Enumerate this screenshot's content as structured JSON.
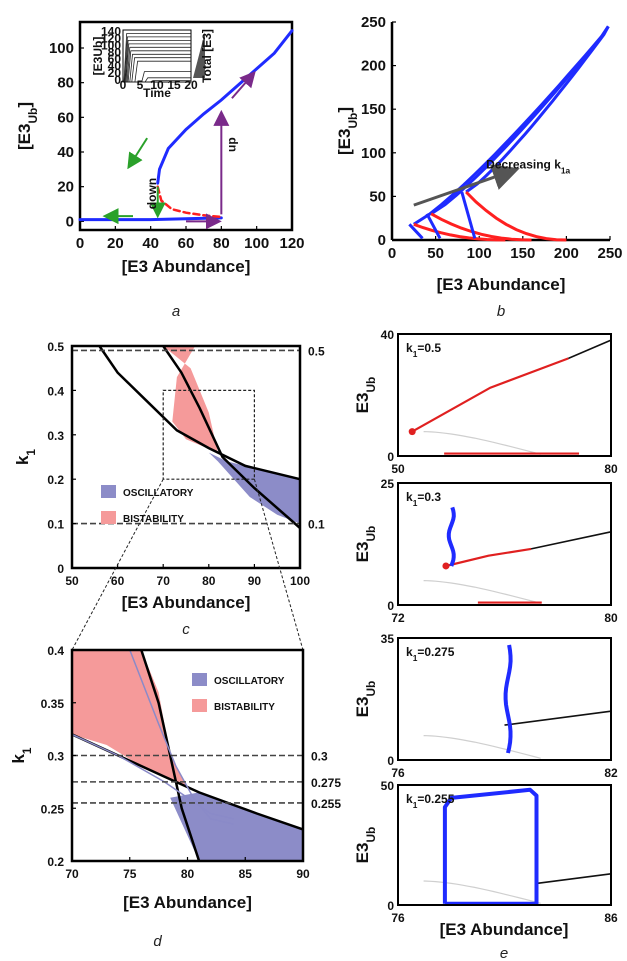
{
  "chart_data": [
    {
      "id": "a",
      "type": "line",
      "caption": "a",
      "xlabel": "[E3 Abundance]",
      "ylabel_main": "[E3",
      "ylabel_sub": "Ub",
      "ylabel_end": "]",
      "xlim": [
        0,
        120
      ],
      "ylim": [
        -5,
        115
      ],
      "xticks": [
        "0",
        "20",
        "40",
        "60",
        "80",
        "100",
        "120"
      ],
      "xtick_values": [
        0,
        20,
        40,
        60,
        80,
        100,
        120
      ],
      "yticks": [
        "0",
        "20",
        "40",
        "60",
        "80",
        "100"
      ],
      "ytick_values": [
        0,
        20,
        40,
        60,
        80,
        100
      ],
      "series": [
        {
          "style": "stable",
          "color": "#1f2bff",
          "x": [
            0,
            20,
            40,
            60,
            80
          ],
          "y": [
            1,
            1,
            1,
            1.5,
            2
          ]
        },
        {
          "style": "stable",
          "color": "#1f2bff",
          "x": [
            44,
            45,
            50,
            60,
            70,
            80,
            90,
            100,
            110,
            120
          ],
          "y": [
            22,
            30,
            42,
            53,
            62,
            70,
            79,
            88,
            97,
            110
          ]
        },
        {
          "style": "unstable",
          "color": "#ff2020",
          "x": [
            44,
            46,
            52,
            60,
            70,
            80
          ],
          "y": [
            20,
            12,
            7,
            5,
            3.5,
            2.5
          ]
        }
      ],
      "annotations": [
        {
          "text": "down",
          "color": "#2aa12a",
          "x": 43,
          "y": 7
        },
        {
          "text": "up",
          "color": "#7a2a8a",
          "x": 88,
          "y": 40
        }
      ],
      "arrows": [
        {
          "color": "#2aa12a",
          "from": [
            38,
            48
          ],
          "to": [
            28,
            32
          ]
        },
        {
          "color": "#2aa12a",
          "from": [
            44,
            20
          ],
          "to": [
            44,
            4
          ]
        },
        {
          "color": "#2aa12a",
          "from": [
            30,
            3
          ],
          "to": [
            15,
            3
          ]
        },
        {
          "color": "#7a2a8a",
          "from": [
            60,
            0
          ],
          "to": [
            78,
            0
          ]
        },
        {
          "color": "#7a2a8a",
          "from": [
            80,
            4
          ],
          "to": [
            80,
            62
          ]
        },
        {
          "color": "#7a2a8a",
          "from": [
            86,
            71
          ],
          "to": [
            98,
            85
          ]
        }
      ],
      "inset": {
        "xlabel": "Time",
        "ylabel_main": "[E3",
        "ylabel_sub": "Ub",
        "ylabel_end": "]",
        "side_label": "Total [E3]",
        "xlim": [
          0,
          20
        ],
        "ylim": [
          0,
          150
        ],
        "xticks": [
          "0",
          "5",
          "10",
          "15",
          "20"
        ],
        "xtick_values": [
          0,
          5,
          10,
          15,
          20
        ],
        "yticks": [
          "0",
          "20",
          "40",
          "60",
          "80",
          "100",
          "120",
          "140"
        ],
        "ytick_values": [
          0,
          20,
          40,
          60,
          80,
          100,
          120,
          140
        ],
        "plateaus": [
          140,
          130,
          120,
          110,
          100,
          90,
          80,
          70,
          60,
          30,
          12,
          4
        ],
        "rise_times": [
          0.3,
          0.5,
          0.7,
          0.9,
          1.2,
          1.5,
          2.0,
          2.6,
          3.5,
          5.5,
          6.5,
          8
        ]
      }
    },
    {
      "id": "b",
      "type": "line",
      "caption": "b",
      "xlabel": "[E3 Abundance]",
      "ylabel_main": "[E3",
      "ylabel_sub": "Ub",
      "ylabel_end": "]",
      "xlim": [
        0,
        250
      ],
      "ylim": [
        0,
        250
      ],
      "xticks": [
        "0",
        "50",
        "100",
        "150",
        "200",
        "250"
      ],
      "xtick_values": [
        0,
        50,
        100,
        150,
        200,
        250
      ],
      "yticks": [
        "0",
        "50",
        "100",
        "150",
        "200",
        "250"
      ],
      "ytick_values": [
        0,
        50,
        100,
        150,
        200,
        250
      ],
      "curves": [
        {
          "xmin": 25,
          "knee": 18,
          "xend": 130
        },
        {
          "xmin": 45,
          "knee": 30,
          "xend": 160
        },
        {
          "xmin": 85,
          "knee": 55,
          "xend": 200
        }
      ],
      "arrow_label_main": "Decreasing k",
      "arrow_label_sub": "1a",
      "arrow": {
        "from": [
          25,
          40
        ],
        "to": [
          140,
          80
        ]
      }
    },
    {
      "id": "c",
      "type": "area",
      "caption": "c",
      "xlabel": "[E3 Abundance]",
      "ylabel_main": "k",
      "ylabel_sub": "1",
      "xlim": [
        50,
        100
      ],
      "ylim": [
        0,
        0.5
      ],
      "xticks": [
        "50",
        "60",
        "70",
        "80",
        "90",
        "100"
      ],
      "xtick_values": [
        50,
        60,
        70,
        80,
        90,
        100
      ],
      "yticks": [
        "0",
        "0.1",
        "0.2",
        "0.3",
        "0.4",
        "0.5"
      ],
      "ytick_values": [
        0,
        0.1,
        0.2,
        0.3,
        0.4,
        0.5
      ],
      "right_labels": [
        "0.5",
        "0.1"
      ],
      "right_label_values": [
        0.49,
        0.1
      ],
      "legend": [
        {
          "label": "OSCILLATORY",
          "color": "#8c8cc8"
        },
        {
          "label": "BISTABILITY",
          "color": "#f59a9a"
        }
      ],
      "bistable": {
        "x": [
          55,
          62,
          70,
          76,
          80,
          82,
          75,
          72,
          73,
          77
        ],
        "y": [
          0.5,
          0.5,
          0.5,
          0.45,
          0.35,
          0.26,
          0.29,
          0.33,
          0.43,
          0.5
        ]
      },
      "oscillatory": {
        "x": [
          80,
          84,
          92,
          100,
          100,
          95,
          89,
          82
        ],
        "y": [
          0.26,
          0.24,
          0.22,
          0.2,
          0.1,
          0.12,
          0.16,
          0.24
        ]
      },
      "bounds": [
        {
          "x": [
            56,
            60,
            66,
            73,
            80,
            88,
            100
          ],
          "y": [
            0.5,
            0.44,
            0.38,
            0.31,
            0.27,
            0.23,
            0.2
          ]
        },
        {
          "x": [
            70,
            74,
            78,
            83,
            90,
            100
          ],
          "y": [
            0.5,
            0.44,
            0.36,
            0.25,
            0.18,
            0.09
          ]
        }
      ],
      "zoom_box": {
        "x0": 70,
        "x1": 90,
        "y0": 0.2,
        "y1": 0.4
      }
    },
    {
      "id": "d",
      "type": "area",
      "caption": "d",
      "xlabel": "[E3 Abundance]",
      "ylabel_main": "k",
      "ylabel_sub": "1",
      "xlim": [
        70,
        90
      ],
      "ylim": [
        0.2,
        0.4
      ],
      "xticks": [
        "70",
        "75",
        "80",
        "85",
        "90"
      ],
      "xtick_values": [
        70,
        75,
        80,
        85,
        90
      ],
      "yticks": [
        "0.2",
        "0.25",
        "0.3",
        "0.35",
        "0.4"
      ],
      "ytick_values": [
        0.2,
        0.25,
        0.3,
        0.35,
        0.4
      ],
      "right_labels": [
        "0.3",
        "0.275",
        "0.255"
      ],
      "right_label_values": [
        0.3,
        0.275,
        0.255
      ],
      "legend": [
        {
          "label": "OSCILLATORY",
          "color": "#8c8cc8"
        },
        {
          "label": "BISTABILITY",
          "color": "#f59a9a"
        }
      ],
      "bistable": {
        "x": [
          70,
          76,
          77.5,
          78.5,
          80,
          81,
          76,
          73,
          70
        ],
        "y": [
          0.4,
          0.4,
          0.36,
          0.3,
          0.27,
          0.265,
          0.29,
          0.31,
          0.32
        ]
      },
      "oscillatory": {
        "x": [
          78.5,
          81,
          86,
          90,
          90,
          81
        ],
        "y": [
          0.26,
          0.265,
          0.245,
          0.23,
          0.2,
          0.2
        ]
      },
      "bounds": [
        {
          "x": [
            70,
            74,
            78,
            81,
            86,
            90
          ],
          "y": [
            0.32,
            0.3,
            0.28,
            0.265,
            0.245,
            0.23
          ]
        },
        {
          "x": [
            76,
            77.5,
            78.5,
            79.5,
            81
          ],
          "y": [
            0.4,
            0.35,
            0.3,
            0.25,
            0.2
          ]
        }
      ],
      "thin_curves": [
        {
          "x": [
            70,
            74,
            78,
            82,
            84
          ],
          "y": [
            0.32,
            0.3,
            0.275,
            0.245,
            0.24
          ]
        },
        {
          "x": [
            75,
            77.5,
            79,
            80.5,
            82,
            84
          ],
          "y": [
            0.4,
            0.33,
            0.29,
            0.26,
            0.24,
            0.235
          ]
        }
      ]
    },
    {
      "id": "e",
      "type": "line",
      "caption": "e",
      "xlabel": "[E3 Abundance]",
      "ylabel_main": "E3",
      "ylabel_sub": "Ub",
      "panels": [
        {
          "k_main": "k",
          "k_sub": "1",
          "k_eq": "=0.5",
          "xlim": [
            50,
            80
          ],
          "ylim": [
            0,
            40
          ],
          "xticks": [
            "50",
            "80"
          ],
          "xtick_values": [
            50,
            80
          ],
          "yticks": [
            "0",
            "40"
          ],
          "ytick_values": [
            0,
            40
          ],
          "red_upper": {
            "x0": 52,
            "x1": 74,
            "y0": 8,
            "y1": 32,
            "xmax": 80,
            "ymax": 38
          },
          "blue_osc": null
        },
        {
          "k_main": "k",
          "k_sub": "1",
          "k_eq": "=0.3",
          "xlim": [
            72,
            80
          ],
          "ylim": [
            0,
            25
          ],
          "xticks": [
            "72",
            "80"
          ],
          "xtick_values": [
            72,
            80
          ],
          "yticks": [
            "0",
            "25"
          ],
          "ytick_values": [
            0,
            25
          ],
          "red_upper": {
            "x0": 73.8,
            "x1": 77,
            "y0": 8,
            "y1": 11.5,
            "xmax": 80,
            "ymax": 15
          },
          "blue_osc": {
            "x": 74,
            "ymin": 8,
            "ymax": 20
          }
        },
        {
          "k_main": "k",
          "k_sub": "1",
          "k_eq": "=0.275",
          "xlim": [
            76,
            82
          ],
          "ylim": [
            0,
            35
          ],
          "xticks": [
            "76",
            "82"
          ],
          "xtick_values": [
            76,
            82
          ],
          "yticks": [
            "0",
            "35"
          ],
          "ytick_values": [
            0,
            35
          ],
          "red_upper": null,
          "black_upper": {
            "x0": 79,
            "x1": 82,
            "y0": 10,
            "y1": 14
          },
          "blue_osc": {
            "x": 79.1,
            "ymin": 2,
            "ymax": 33
          }
        },
        {
          "k_main": "k",
          "k_sub": "1",
          "k_eq": "=0.255",
          "xlim": [
            76,
            86
          ],
          "ylim": [
            0,
            50
          ],
          "xticks": [
            "76",
            "86"
          ],
          "xtick_values": [
            76,
            86
          ],
          "yticks": [
            "0",
            "50"
          ],
          "ytick_values": [
            0,
            50
          ],
          "red_upper": null,
          "black_upper": {
            "x0": 82.5,
            "x1": 86,
            "y0": 9,
            "y1": 13
          },
          "blue_cycle": {
            "x0": 78.2,
            "x1": 82.5,
            "y0": 0.5,
            "y1": 48
          }
        }
      ]
    }
  ]
}
